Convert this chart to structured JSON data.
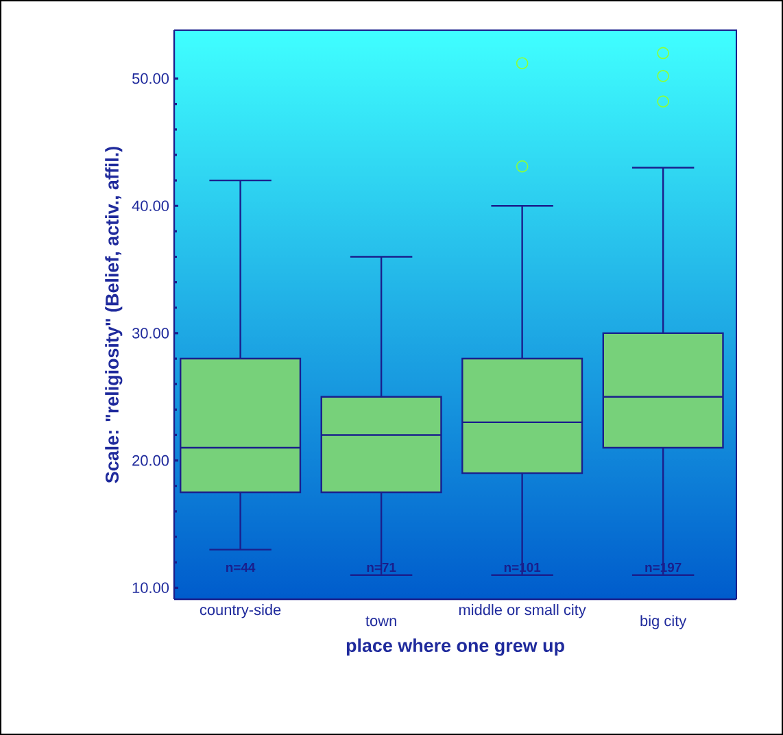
{
  "chart_data": {
    "type": "box",
    "categories": [
      "country-side",
      "town",
      "middle or small city",
      "big city"
    ],
    "boxes": [
      {
        "low": 13,
        "q1": 17.5,
        "median": 21,
        "q3": 28,
        "high": 42
      },
      {
        "low": 11,
        "q1": 17.5,
        "median": 22,
        "q3": 25,
        "high": 36
      },
      {
        "low": 11,
        "q1": 19,
        "median": 23,
        "q3": 28,
        "high": 40,
        "outliers": [
          43.1,
          51.2
        ]
      },
      {
        "low": 11,
        "q1": 21,
        "median": 25,
        "q3": 30,
        "high": 43,
        "outliers": [
          48.2,
          50.2,
          52
        ]
      }
    ],
    "color": "#77d17a",
    "xlabel": "place where one grew up",
    "ylabel": "Scale: \"religiosity\" (Belief, activ., affil.)",
    "ylim": [
      9.1,
      53.8
    ],
    "yticks": [
      {
        "value": 10,
        "label": "10.00"
      },
      {
        "value": 20,
        "label": "20.00"
      },
      {
        "value": 30,
        "label": "30.00"
      },
      {
        "value": 40,
        "label": "40.00"
      },
      {
        "value": 50,
        "label": "50.00"
      }
    ],
    "annotations": [
      "n=44",
      "n=71",
      "n=101",
      "n=197"
    ],
    "grid": false
  }
}
